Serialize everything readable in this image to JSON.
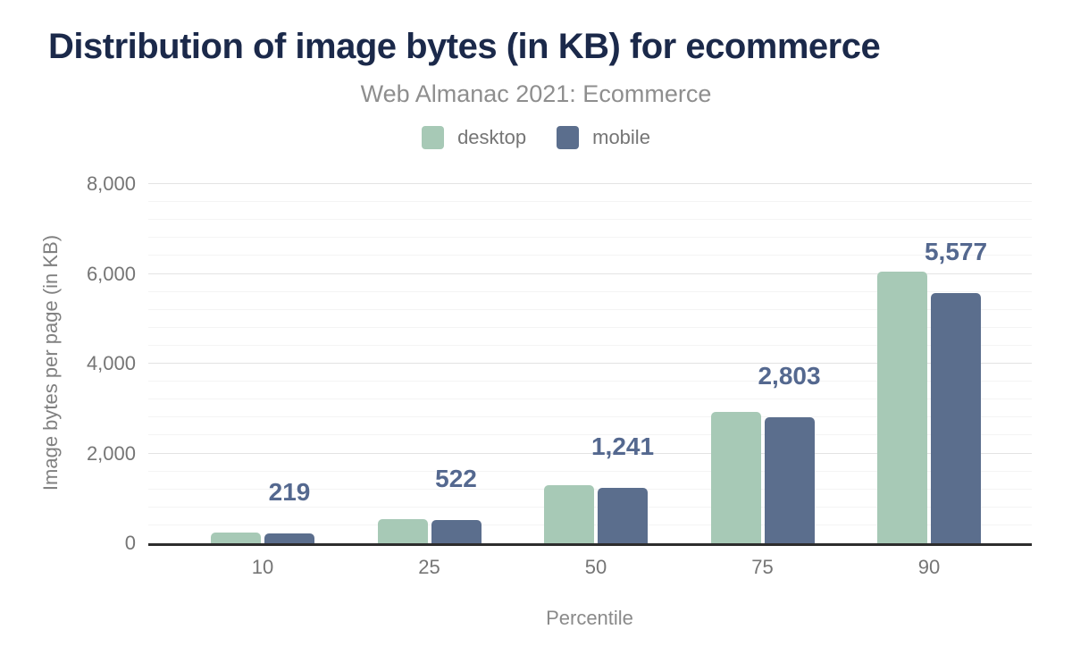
{
  "chart_data": {
    "type": "bar",
    "title": "Distribution of image bytes (in KB) for ecommerce",
    "subtitle": "Web Almanac 2021: Ecommerce",
    "xlabel": "Percentile",
    "ylabel": "Image bytes per page (in KB)",
    "categories": [
      "10",
      "25",
      "50",
      "75",
      "90"
    ],
    "series": [
      {
        "name": "desktop",
        "color": "#a7c9b6",
        "values": [
          240,
          545,
          1295,
          2930,
          6060
        ]
      },
      {
        "name": "mobile",
        "color": "#5b6e8d",
        "values": [
          219,
          522,
          1241,
          2803,
          5577
        ]
      }
    ],
    "data_labels": [
      "219",
      "522",
      "1,241",
      "2,803",
      "5,577"
    ],
    "data_labels_series": "mobile",
    "ylim": [
      0,
      8000
    ],
    "yticks": [
      {
        "label": "0",
        "value": 0
      },
      {
        "label": "2,000",
        "value": 2000
      },
      {
        "label": "4,000",
        "value": 4000
      },
      {
        "label": "6,000",
        "value": 6000
      },
      {
        "label": "8,000",
        "value": 8000
      }
    ],
    "grid": {
      "on": true,
      "major_step": 2000,
      "minor_step": 400
    },
    "legend_position": "top-center",
    "colors": {
      "title": "#1b294a",
      "subtitle": "#8e8e8e",
      "tick_label": "#757575",
      "value_label": "#54688f",
      "axis_line": "#2d2d2d",
      "major_gridline": "#e3e3e3",
      "minor_gridline": "#f4f4f4",
      "background": "#ffffff"
    }
  }
}
